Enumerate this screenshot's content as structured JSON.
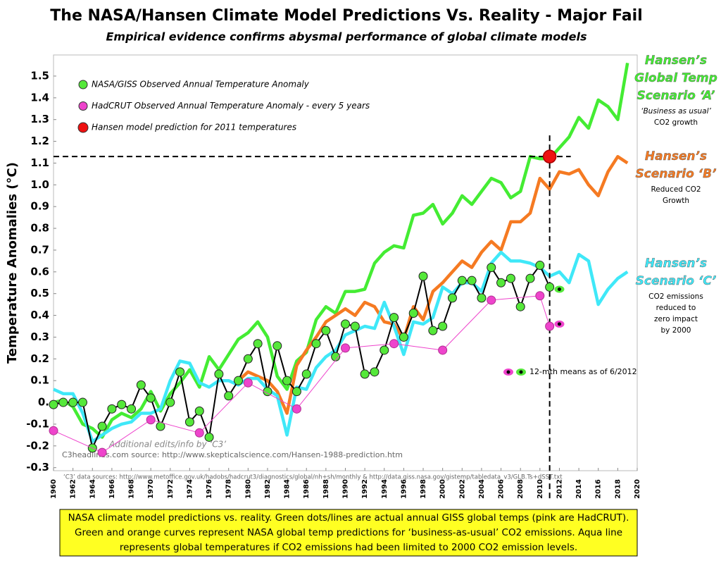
{
  "chart_data": {
    "type": "line",
    "title": "The NASA/Hansen Climate Model Predictions Vs. Reality - Major Fail",
    "subtitle": "Empirical evidence confirms abysmal performance of global climate models",
    "y_label": "Temperature Anomalies (°C)",
    "xlim": [
      1960,
      2020
    ],
    "ylim": [
      -0.314,
      1.597
    ],
    "xticks": [
      1960,
      1962,
      1964,
      1966,
      1968,
      1970,
      1972,
      1974,
      1976,
      1978,
      1980,
      1982,
      1984,
      1986,
      1988,
      1990,
      1992,
      1994,
      1996,
      1998,
      2000,
      2002,
      2004,
      2006,
      2008,
      2010,
      2012,
      2014,
      2016,
      2018,
      2020
    ],
    "yticks": [
      -0.3,
      -0.2,
      -0.1,
      {
        "value": 0,
        "label": "0."
      },
      0.1,
      0.2,
      0.3,
      0.4,
      0.5,
      0.6,
      0.7,
      0.8,
      0.9,
      {
        "value": 1,
        "label": "1.0"
      },
      1.1,
      1.2,
      1.3,
      1.4,
      1.5
    ],
    "grid": false,
    "series": [
      {
        "color": "#44ec33",
        "style": "thick",
        "x": [
          1960,
          1961,
          1962,
          1963,
          1964,
          1965,
          1966,
          1967,
          1968,
          1969,
          1970,
          1971,
          1972,
          1973,
          1974,
          1975,
          1976,
          1977,
          1978,
          1979,
          1980,
          1981,
          1982,
          1983,
          1984,
          1985,
          1986,
          1987,
          1988,
          1989,
          1990,
          1991,
          1992,
          1993,
          1994,
          1995,
          1996,
          1997,
          1998,
          1999,
          2000,
          2001,
          2002,
          2003,
          2004,
          2005,
          2006,
          2007,
          2008,
          2009,
          2010,
          2011,
          2012,
          2013,
          2014,
          2015,
          2016,
          2017,
          2018,
          2019
        ],
        "values": [
          0.0,
          0.01,
          -0.02,
          -0.1,
          -0.12,
          -0.16,
          -0.08,
          -0.05,
          -0.07,
          -0.03,
          0.05,
          -0.04,
          0.04,
          0.09,
          0.15,
          0.07,
          0.21,
          0.15,
          0.22,
          0.29,
          0.32,
          0.37,
          0.3,
          0.12,
          0.06,
          0.19,
          0.23,
          0.38,
          0.44,
          0.41,
          0.51,
          0.51,
          0.52,
          0.64,
          0.69,
          0.72,
          0.71,
          0.86,
          0.87,
          0.91,
          0.82,
          0.87,
          0.95,
          0.91,
          0.97,
          1.03,
          1.01,
          0.94,
          0.97,
          1.13,
          1.12,
          1.12,
          1.17,
          1.22,
          1.31,
          1.26,
          1.39,
          1.36,
          1.3,
          1.56
        ]
      },
      {
        "color": "#f57a22",
        "style": "thick",
        "x": [
          1979,
          1980,
          1981,
          1982,
          1983,
          1984,
          1985,
          1986,
          1987,
          1988,
          1989,
          1990,
          1991,
          1992,
          1993,
          1994,
          1995,
          1996,
          1997,
          1998,
          1999,
          2000,
          2001,
          2002,
          2003,
          2004,
          2005,
          2006,
          2007,
          2008,
          2009,
          2010,
          2011,
          2012,
          2013,
          2014,
          2015,
          2016,
          2017,
          2018,
          2019
        ],
        "values": [
          0.1,
          0.14,
          0.12,
          0.1,
          0.05,
          -0.05,
          0.17,
          0.24,
          0.3,
          0.37,
          0.4,
          0.43,
          0.4,
          0.46,
          0.44,
          0.37,
          0.36,
          0.29,
          0.44,
          0.38,
          0.51,
          0.55,
          0.6,
          0.65,
          0.62,
          0.69,
          0.74,
          0.7,
          0.83,
          0.83,
          0.87,
          1.03,
          0.98,
          1.06,
          1.05,
          1.07,
          1.0,
          0.95,
          1.06,
          1.13,
          1.1
        ]
      },
      {
        "color": "#3fe8f8",
        "style": "thick",
        "x": [
          1960,
          1961,
          1962,
          1963,
          1964,
          1965,
          1966,
          1967,
          1968,
          1969,
          1970,
          1971,
          1972,
          1973,
          1974,
          1975,
          1976,
          1977,
          1978,
          1979,
          1980,
          1981,
          1982,
          1983,
          1984,
          1985,
          1986,
          1987,
          1988,
          1989,
          1990,
          1991,
          1992,
          1993,
          1994,
          1995,
          1996,
          1997,
          1998,
          1999,
          2000,
          2001,
          2002,
          2003,
          2004,
          2005,
          2006,
          2007,
          2008,
          2009,
          2010,
          2011,
          2012,
          2013,
          2014,
          2015,
          2016,
          2017,
          2018,
          2019
        ],
        "values": [
          0.06,
          0.04,
          0.04,
          -0.05,
          -0.18,
          -0.15,
          -0.12,
          -0.1,
          -0.09,
          -0.05,
          -0.05,
          -0.03,
          0.1,
          0.19,
          0.18,
          0.09,
          0.07,
          0.1,
          0.1,
          0.08,
          0.11,
          0.11,
          0.06,
          0.03,
          -0.15,
          0.07,
          0.06,
          0.16,
          0.21,
          0.24,
          0.31,
          0.33,
          0.35,
          0.34,
          0.46,
          0.35,
          0.22,
          0.37,
          0.36,
          0.39,
          0.53,
          0.5,
          0.55,
          0.55,
          0.51,
          0.64,
          0.69,
          0.65,
          0.65,
          0.64,
          0.62,
          0.58,
          0.6,
          0.55,
          0.68,
          0.65,
          0.45,
          0.52,
          0.57,
          0.6
        ]
      },
      {
        "name": "NASA/GISS Observed Annual Temperature Anomaly",
        "color": "#55e83a",
        "line_color": "#000000",
        "style": "dots",
        "x": [
          1960,
          1961,
          1962,
          1963,
          1964,
          1965,
          1966,
          1967,
          1968,
          1969,
          1970,
          1971,
          1972,
          1973,
          1974,
          1975,
          1976,
          1977,
          1978,
          1979,
          1980,
          1981,
          1982,
          1983,
          1984,
          1985,
          1986,
          1987,
          1988,
          1989,
          1990,
          1991,
          1992,
          1993,
          1994,
          1995,
          1996,
          1997,
          1998,
          1999,
          2000,
          2001,
          2002,
          2003,
          2004,
          2005,
          2006,
          2007,
          2008,
          2009,
          2010,
          2011
        ],
        "values": [
          -0.01,
          0,
          0,
          0,
          -0.21,
          -0.11,
          -0.03,
          -0.01,
          -0.03,
          0.08,
          0.02,
          -0.11,
          0,
          0.14,
          -0.09,
          -0.04,
          -0.16,
          0.13,
          0.03,
          0.1,
          0.2,
          0.27,
          0.05,
          0.26,
          0.1,
          0.05,
          0.13,
          0.27,
          0.33,
          0.21,
          0.36,
          0.35,
          0.13,
          0.14,
          0.24,
          0.39,
          0.3,
          0.41,
          0.58,
          0.33,
          0.35,
          0.48,
          0.56,
          0.56,
          0.48,
          0.62,
          0.55,
          0.57,
          0.44,
          0.57,
          0.63,
          0.53
        ]
      },
      {
        "name": "HadCRUT Observed Annual Temperature Anomaly - every 5 years",
        "color": "#ee44cc",
        "line_color": "#ee44cc",
        "style": "dots",
        "x": [
          1960,
          1965,
          1970,
          1975,
          1980,
          1985,
          1990,
          1995,
          2000,
          2005,
          2010,
          2011
        ],
        "values": [
          -0.13,
          -0.23,
          -0.08,
          -0.14,
          0.09,
          -0.03,
          0.25,
          0.27,
          0.24,
          0.47,
          0.49,
          0.35
        ]
      },
      {
        "name": "Hansen model prediction for 2011 temperatures",
        "color": "#ee1111",
        "style": "point",
        "x": [
          2011
        ],
        "values": [
          1.13
        ]
      }
    ],
    "twelve_month_means": {
      "label": "12-mth means as of 6/2012",
      "x": 2012,
      "hadcrut": 0.36,
      "giss": 0.52
    },
    "scenario_notes": [
      {
        "heading": [
          "Hansen’s",
          "Global Temp",
          "Scenario ‘A’"
        ],
        "note": [
          "‘Business as usual’",
          "CO2 growth"
        ]
      },
      {
        "heading": [
          "Hansen’s",
          "Scenario ‘B’"
        ],
        "note": [
          "Reduced CO2",
          "Growth"
        ]
      },
      {
        "heading": [
          "Hansen’s",
          "Scenario ‘C’"
        ],
        "note": [
          "CO2 emissions",
          "reduced to",
          "zero impact",
          "by 2000"
        ]
      }
    ],
    "credit": "Additional edits/info by ‘C3’",
    "source": "C3headlines.com source: http://www.skepticalscience.com/Hansen-1988-prediction.htm",
    "data_sources": "‘C3’ data sources: http://www.metoffice.gov.uk/hadobs/hadcrut3/diagnostics/global/nh+sh/monthly  &  http://data.giss.nasa.gov/gistemp/tabledata_v3/GLB.Ts+dSST.txt",
    "footer": [
      "NASA climate model predictions vs. reality. Green dots/lines are actual annual GISS global temps (pink are HadCRUT).",
      "Green and orange curves represent NASA global temp predictions for ‘business-as-usual’ CO2 emissions. Aqua line",
      "represents global temperatures if CO2 emissions had been limited to 2000 CO2 emission levels."
    ]
  }
}
